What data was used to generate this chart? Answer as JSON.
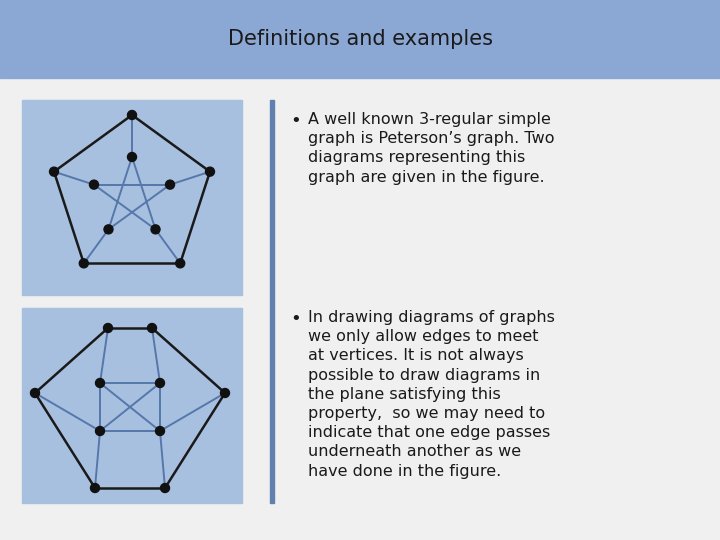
{
  "title": "Definitions and examples",
  "title_bg": "#8ba7d4",
  "slide_bg": "#f0f0f0",
  "graph_bg": "#a8c0e0",
  "bullet1": "A well known 3-regular simple graph is Peterson’s graph. Two diagrams representing this graph are given in the figure.",
  "bullet2": "In drawing diagrams of graphs we only allow edges to meet at vertices. It is not always possible to draw diagrams in the plane satisfying this property,  so we may need to indicate that one edge passes underneath another as we have done in the figure.",
  "divider_color": "#6080b0",
  "node_color": "#111111",
  "edge_color": "#1a1a1a",
  "inner_edge_color": "#5577aa",
  "text_color": "#1a1a1a",
  "title_fontsize": 15,
  "bullet_fontsize": 11.5
}
